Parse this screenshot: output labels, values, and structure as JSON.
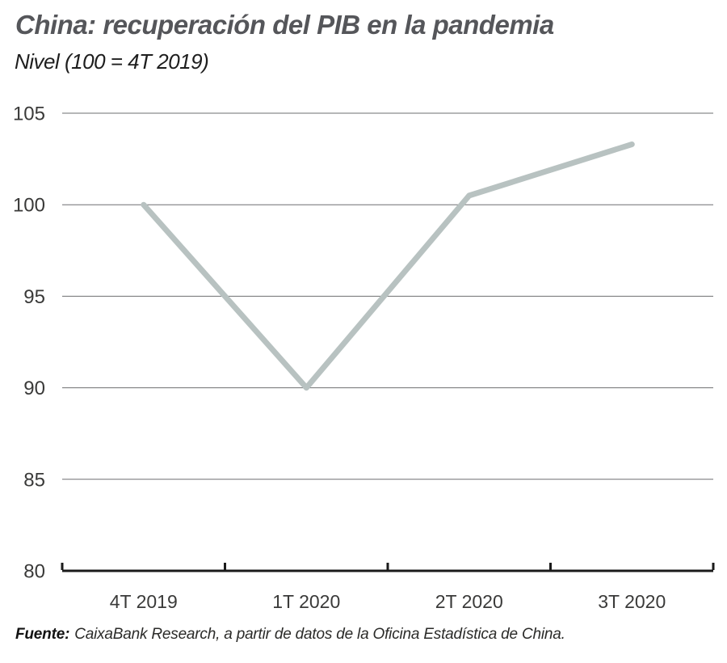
{
  "header": {
    "title": "China: recuperación del PIB en la pandemia",
    "subtitle": "Nivel (100 = 4T 2019)"
  },
  "chart_data": {
    "type": "line",
    "title": "China: recuperación del PIB en la pandemia",
    "subtitle": "Nivel (100 = 4T 2019)",
    "categories": [
      "4T 2019",
      "1T 2020",
      "2T 2020",
      "3T 2020"
    ],
    "values": [
      100,
      90,
      100.5,
      103.3
    ],
    "xlabel": "",
    "ylabel": "",
    "ylim": [
      80,
      105
    ],
    "y_ticks": [
      105,
      100,
      95,
      90,
      85,
      80
    ],
    "grid": "horizontal",
    "legend": "none",
    "colors": {
      "line": "#b8c2c1",
      "gridline": "#6e6f71",
      "axis": "#1b1b1b",
      "tick_label": "#3a3a39"
    }
  },
  "footer": {
    "source_label": "Fuente:",
    "source_text": "CaixaBank Research, a partir de datos de la Oficina Estadística de China."
  }
}
